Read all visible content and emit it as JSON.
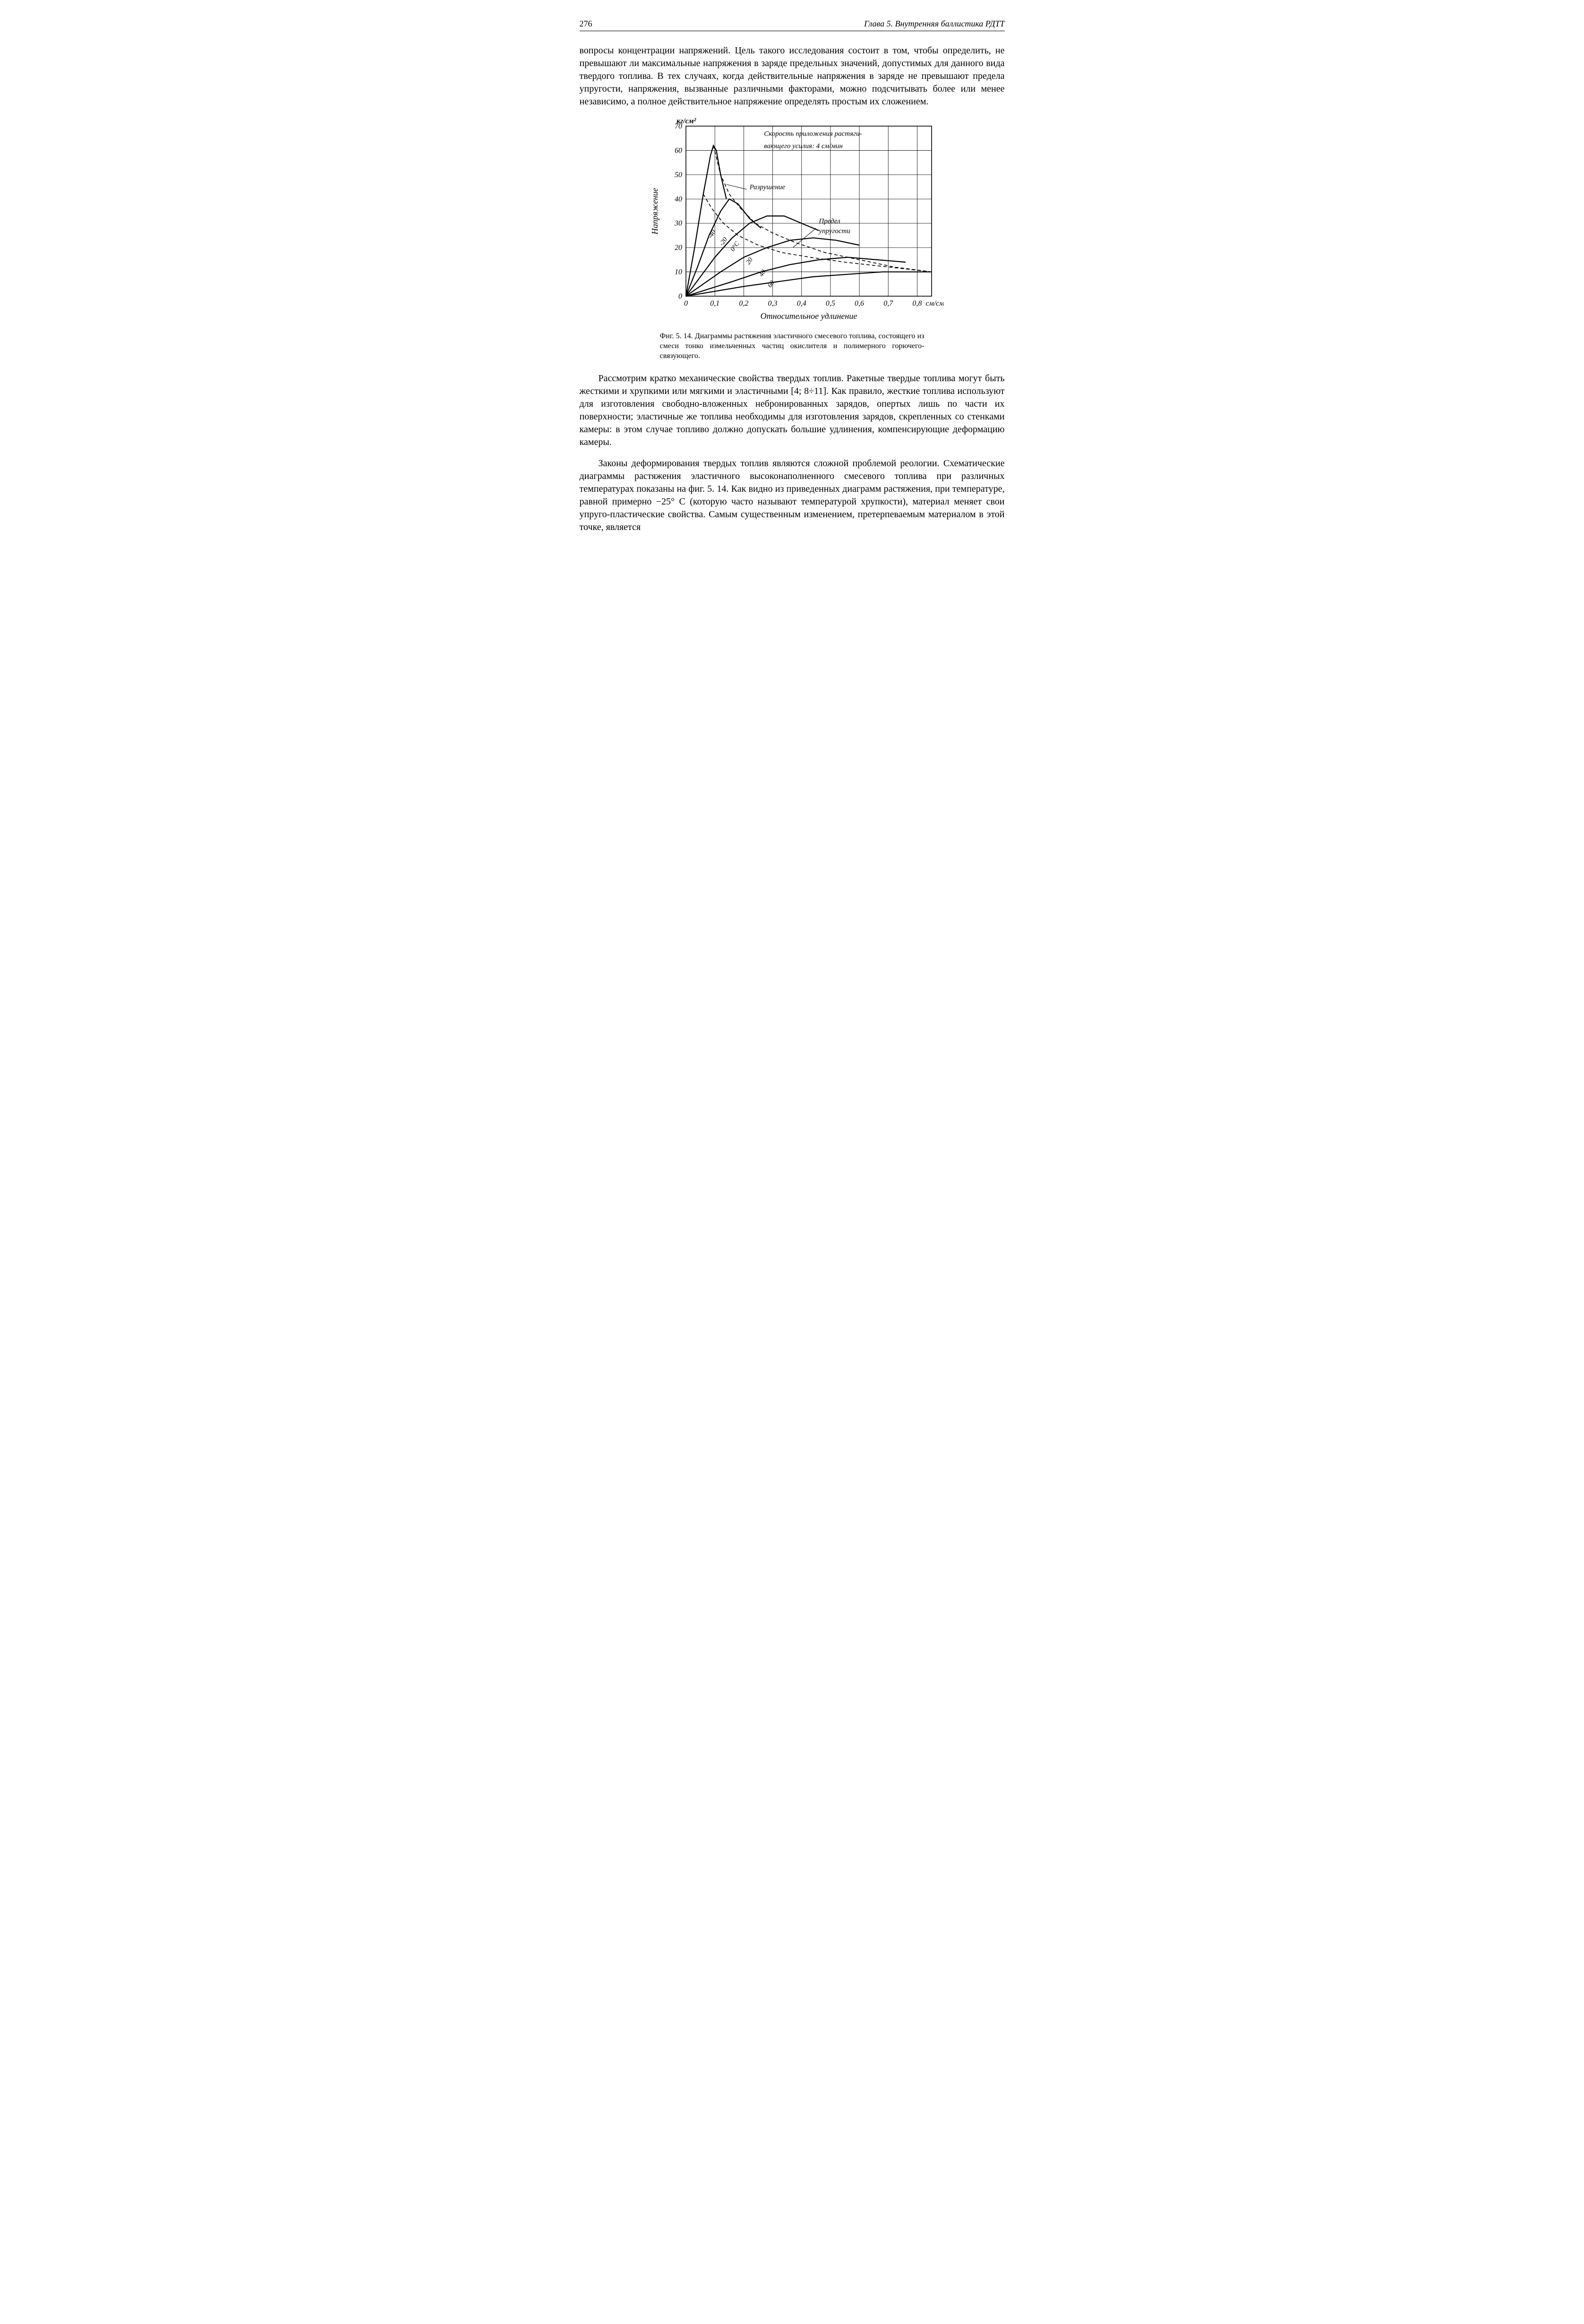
{
  "page_number": "276",
  "running_head": "Глава 5. Внутренняя баллистика РДТТ",
  "para1": "вопросы концентрации напряжений. Цель такого исследования состоит в том, чтобы определить, не превышают ли максимальные напряжения в заряде предельных значений, допустимых для данного вида твердого топлива. В тех случаях, когда действительные напряжения в заряде не превышают предела упругости, напряжения, вызванные различными факторами, можно подсчитывать более или менее независимо, а полное действительное напряжение определять простым их сложением.",
  "para2": "Рассмотрим кратко механические свойства твердых топлив. Ракетные твердые топлива могут быть жесткими и хрупкими или мягкими и эластичными [4; 8÷11]. Как правило, жесткие топлива используют для изготовления свободно-вложенных небронированных зарядов, опертых лишь по части их поверхности; эластичные же топлива необходимы для изготовления зарядов, скрепленных со стенками камеры: в этом случае топливо должно допускать большие удлинения, компенсирующие деформацию камеры.",
  "para3": "Законы деформирования твердых топлив являются сложной проблемой реологии. Схематические диаграммы растяжения эластичного высоконаполненного смесевого топлива при различных температурах показаны на фиг. 5. 14. Как видно из приведенных диаграмм растяжения, при температуре, равной примерно −25° C (которую часто называют температурой хрупкости), материал меняет свои упруго-пластические свойства. Самым существенным изменением, претерпеваемым материалом в этой точке, является",
  "caption": "Фиг. 5. 14. Диаграммы растяжения эластичного смесевого топлива, состоящего из смеси тонко измельченных частиц окислителя и полимерного горючего-связующего.",
  "chart": {
    "type": "line",
    "y_unit": "кг/см²",
    "y_axis_label": "Напряжение",
    "x_axis_label": "Относительное удлинение",
    "x_unit": "см/см",
    "title_line1": "Скорость приложения растяги-",
    "title_line2": "вающего усилия: 4 см/мин",
    "annot_rupture": "Разрушение",
    "annot_elastic_line1": "Предел",
    "annot_elastic_line2": "упругости",
    "x_ticks": [
      "0",
      "0,1",
      "0,2",
      "0,3",
      "0,4",
      "0,5",
      "0,6",
      "0,7",
      "0,8"
    ],
    "y_ticks": [
      "0",
      "10",
      "20",
      "30",
      "40",
      "50",
      "60",
      "70"
    ],
    "xlim": [
      0,
      0.85
    ],
    "ylim": [
      0,
      70
    ],
    "grid_color": "#000000",
    "line_color": "#000000",
    "line_width": 2.2,
    "dashed_width": 1.6,
    "background": "#ffffff",
    "series": [
      {
        "label": "-40",
        "pts": [
          [
            0,
            0
          ],
          [
            0.03,
            20
          ],
          [
            0.06,
            42
          ],
          [
            0.085,
            58
          ],
          [
            0.095,
            62
          ],
          [
            0.105,
            60
          ],
          [
            0.12,
            50
          ],
          [
            0.14,
            40
          ]
        ]
      },
      {
        "label": "-20",
        "pts": [
          [
            0,
            0
          ],
          [
            0.04,
            12
          ],
          [
            0.08,
            25
          ],
          [
            0.12,
            35
          ],
          [
            0.15,
            40
          ],
          [
            0.18,
            38
          ],
          [
            0.22,
            32
          ],
          [
            0.26,
            28
          ]
        ]
      },
      {
        "label": "0°C",
        "pts": [
          [
            0,
            0
          ],
          [
            0.05,
            8
          ],
          [
            0.1,
            16
          ],
          [
            0.16,
            24
          ],
          [
            0.22,
            30
          ],
          [
            0.28,
            33
          ],
          [
            0.34,
            33
          ],
          [
            0.4,
            30
          ],
          [
            0.46,
            27
          ]
        ]
      },
      {
        "label": "20",
        "pts": [
          [
            0,
            0
          ],
          [
            0.06,
            5
          ],
          [
            0.12,
            10
          ],
          [
            0.2,
            16
          ],
          [
            0.28,
            20
          ],
          [
            0.36,
            23
          ],
          [
            0.44,
            24
          ],
          [
            0.52,
            23
          ],
          [
            0.6,
            21
          ]
        ]
      },
      {
        "label": "40",
        "pts": [
          [
            0,
            0
          ],
          [
            0.08,
            3
          ],
          [
            0.16,
            6
          ],
          [
            0.26,
            10
          ],
          [
            0.36,
            13
          ],
          [
            0.46,
            15
          ],
          [
            0.56,
            16
          ],
          [
            0.66,
            15
          ],
          [
            0.76,
            14
          ]
        ]
      },
      {
        "label": "60",
        "pts": [
          [
            0,
            0
          ],
          [
            0.1,
            2
          ],
          [
            0.2,
            4
          ],
          [
            0.32,
            6
          ],
          [
            0.44,
            8
          ],
          [
            0.56,
            9
          ],
          [
            0.68,
            10
          ],
          [
            0.78,
            10
          ],
          [
            0.85,
            10
          ]
        ]
      }
    ],
    "rupture_curve": [
      [
        0.095,
        62
      ],
      [
        0.12,
        50
      ],
      [
        0.15,
        42
      ],
      [
        0.19,
        36
      ],
      [
        0.24,
        30
      ],
      [
        0.3,
        26
      ],
      [
        0.38,
        22
      ],
      [
        0.48,
        18
      ],
      [
        0.6,
        15
      ],
      [
        0.72,
        12
      ],
      [
        0.85,
        10
      ]
    ],
    "elastic_curve": [
      [
        0.06,
        42
      ],
      [
        0.09,
        36
      ],
      [
        0.13,
        30
      ],
      [
        0.18,
        25
      ],
      [
        0.25,
        21
      ],
      [
        0.33,
        18
      ],
      [
        0.43,
        16
      ],
      [
        0.55,
        14
      ],
      [
        0.7,
        12
      ],
      [
        0.85,
        10
      ]
    ],
    "temp_label_positions": {
      "-40": [
        0.095,
        25
      ],
      "-20": [
        0.135,
        22
      ],
      "0°C": [
        0.175,
        20
      ],
      "20": [
        0.225,
        14
      ],
      "40": [
        0.27,
        9
      ],
      "60": [
        0.3,
        4.5
      ]
    }
  }
}
